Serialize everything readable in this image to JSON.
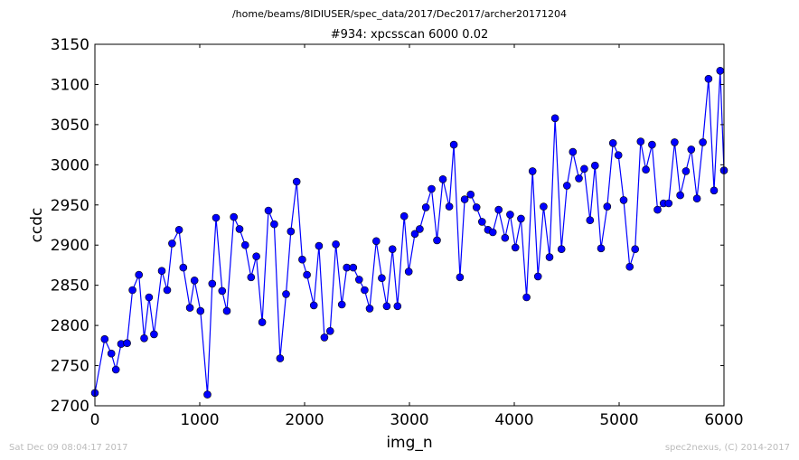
{
  "header": {
    "path": "/home/beams/8IDIUSER/spec_data/2017/Dec2017/archer20171204"
  },
  "footer": {
    "timestamp": "Sat Dec 09 08:04:17 2017",
    "credit": "spec2nexus, (C) 2014-2017"
  },
  "chart_data": {
    "type": "line",
    "title": "#934: xpcsscan 6000 0.02",
    "xlabel": "img_n",
    "ylabel": "ccdc",
    "xlim": [
      0,
      6000
    ],
    "ylim": [
      2700,
      3150
    ],
    "xticks": [
      0,
      1000,
      2000,
      3000,
      4000,
      5000,
      6000
    ],
    "yticks": [
      2700,
      2750,
      2800,
      2850,
      2900,
      2950,
      3000,
      3050,
      3100,
      3150
    ],
    "grid": false,
    "series": [
      {
        "color": "#0000ff",
        "marker": "circle",
        "x": [
          0,
          93,
          157,
          200,
          250,
          307,
          359,
          420,
          470,
          516,
          564,
          638,
          690,
          736,
          803,
          843,
          906,
          950,
          1007,
          1073,
          1119,
          1155,
          1214,
          1259,
          1325,
          1379,
          1434,
          1490,
          1540,
          1596,
          1655,
          1710,
          1766,
          1823,
          1869,
          1924,
          1978,
          2022,
          2088,
          2137,
          2189,
          2244,
          2298,
          2355,
          2403,
          2464,
          2520,
          2572,
          2621,
          2684,
          2736,
          2784,
          2838,
          2886,
          2950,
          2993,
          3052,
          3098,
          3157,
          3211,
          3263,
          3319,
          3380,
          3423,
          3482,
          3527,
          3584,
          3640,
          3692,
          3749,
          3795,
          3851,
          3912,
          3960,
          4010,
          4064,
          4117,
          4174,
          4226,
          4279,
          4336,
          4389,
          4450,
          4503,
          4559,
          4616,
          4667,
          4722,
          4770,
          4828,
          4886,
          4941,
          4993,
          5043,
          5101,
          5153,
          5205,
          5255,
          5314,
          5366,
          5424,
          5472,
          5529,
          5583,
          5637,
          5688,
          5742,
          5798,
          5853,
          5905,
          5964,
          6000
        ],
        "y": [
          2716,
          2783,
          2765,
          2745,
          2777,
          2778,
          2844,
          2863,
          2784,
          2835,
          2789,
          2868,
          2844,
          2902,
          2919,
          2872,
          2822,
          2856,
          2818,
          2714,
          2852,
          2934,
          2843,
          2818,
          2935,
          2920,
          2900,
          2860,
          2886,
          2804,
          2943,
          2926,
          2759,
          2839,
          2917,
          2979,
          2882,
          2863,
          2825,
          2899,
          2785,
          2793,
          2901,
          2826,
          2872,
          2872,
          2857,
          2844,
          2821,
          2905,
          2859,
          2824,
          2895,
          2824,
          2936,
          2867,
          2914,
          2920,
          2947,
          2970,
          2906,
          2982,
          2948,
          3025,
          2860,
          2957,
          2963,
          2947,
          2929,
          2919,
          2916,
          2944,
          2909,
          2938,
          2897,
          2933,
          2835,
          2992,
          2861,
          2948,
          2885,
          3058,
          2895,
          2974,
          3016,
          2983,
          2995,
          2931,
          2999,
          2896,
          2948,
          3027,
          3012,
          2956,
          2873,
          2895,
          3029,
          2994,
          3025,
          2944,
          2952,
          2952,
          3028,
          2962,
          2992,
          3019,
          2958,
          3028,
          3107,
          2968,
          3117,
          2993
        ]
      }
    ]
  }
}
